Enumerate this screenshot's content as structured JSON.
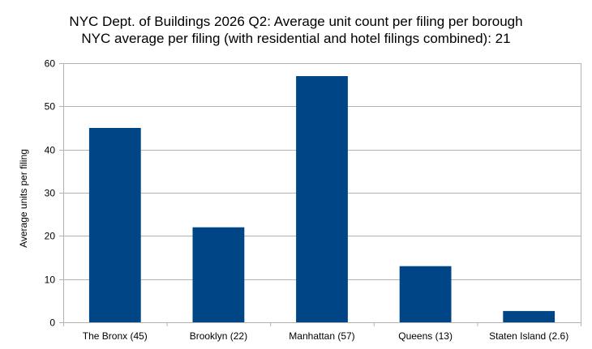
{
  "chart_data": {
    "type": "bar",
    "title": "NYC Dept. of Buildings 2026 Q2: Average unit count per filing per borough",
    "subtitle": "NYC average per filing (with residential and hotel filings combined): 21",
    "xlabel": "",
    "ylabel": "Average units per filing",
    "categories": [
      "The Bronx (45)",
      "Brooklyn (22)",
      "Manhattan (57)",
      "Queens (13)",
      "Staten Island (2.6)"
    ],
    "values": [
      45,
      22,
      57,
      13,
      2.6
    ],
    "ylim": [
      0,
      60
    ],
    "yticks": [
      0,
      10,
      20,
      30,
      40,
      50,
      60
    ],
    "grid": true,
    "legend": "none",
    "colors": {
      "bar": "#004586",
      "grid": "#b3b3b3"
    }
  }
}
